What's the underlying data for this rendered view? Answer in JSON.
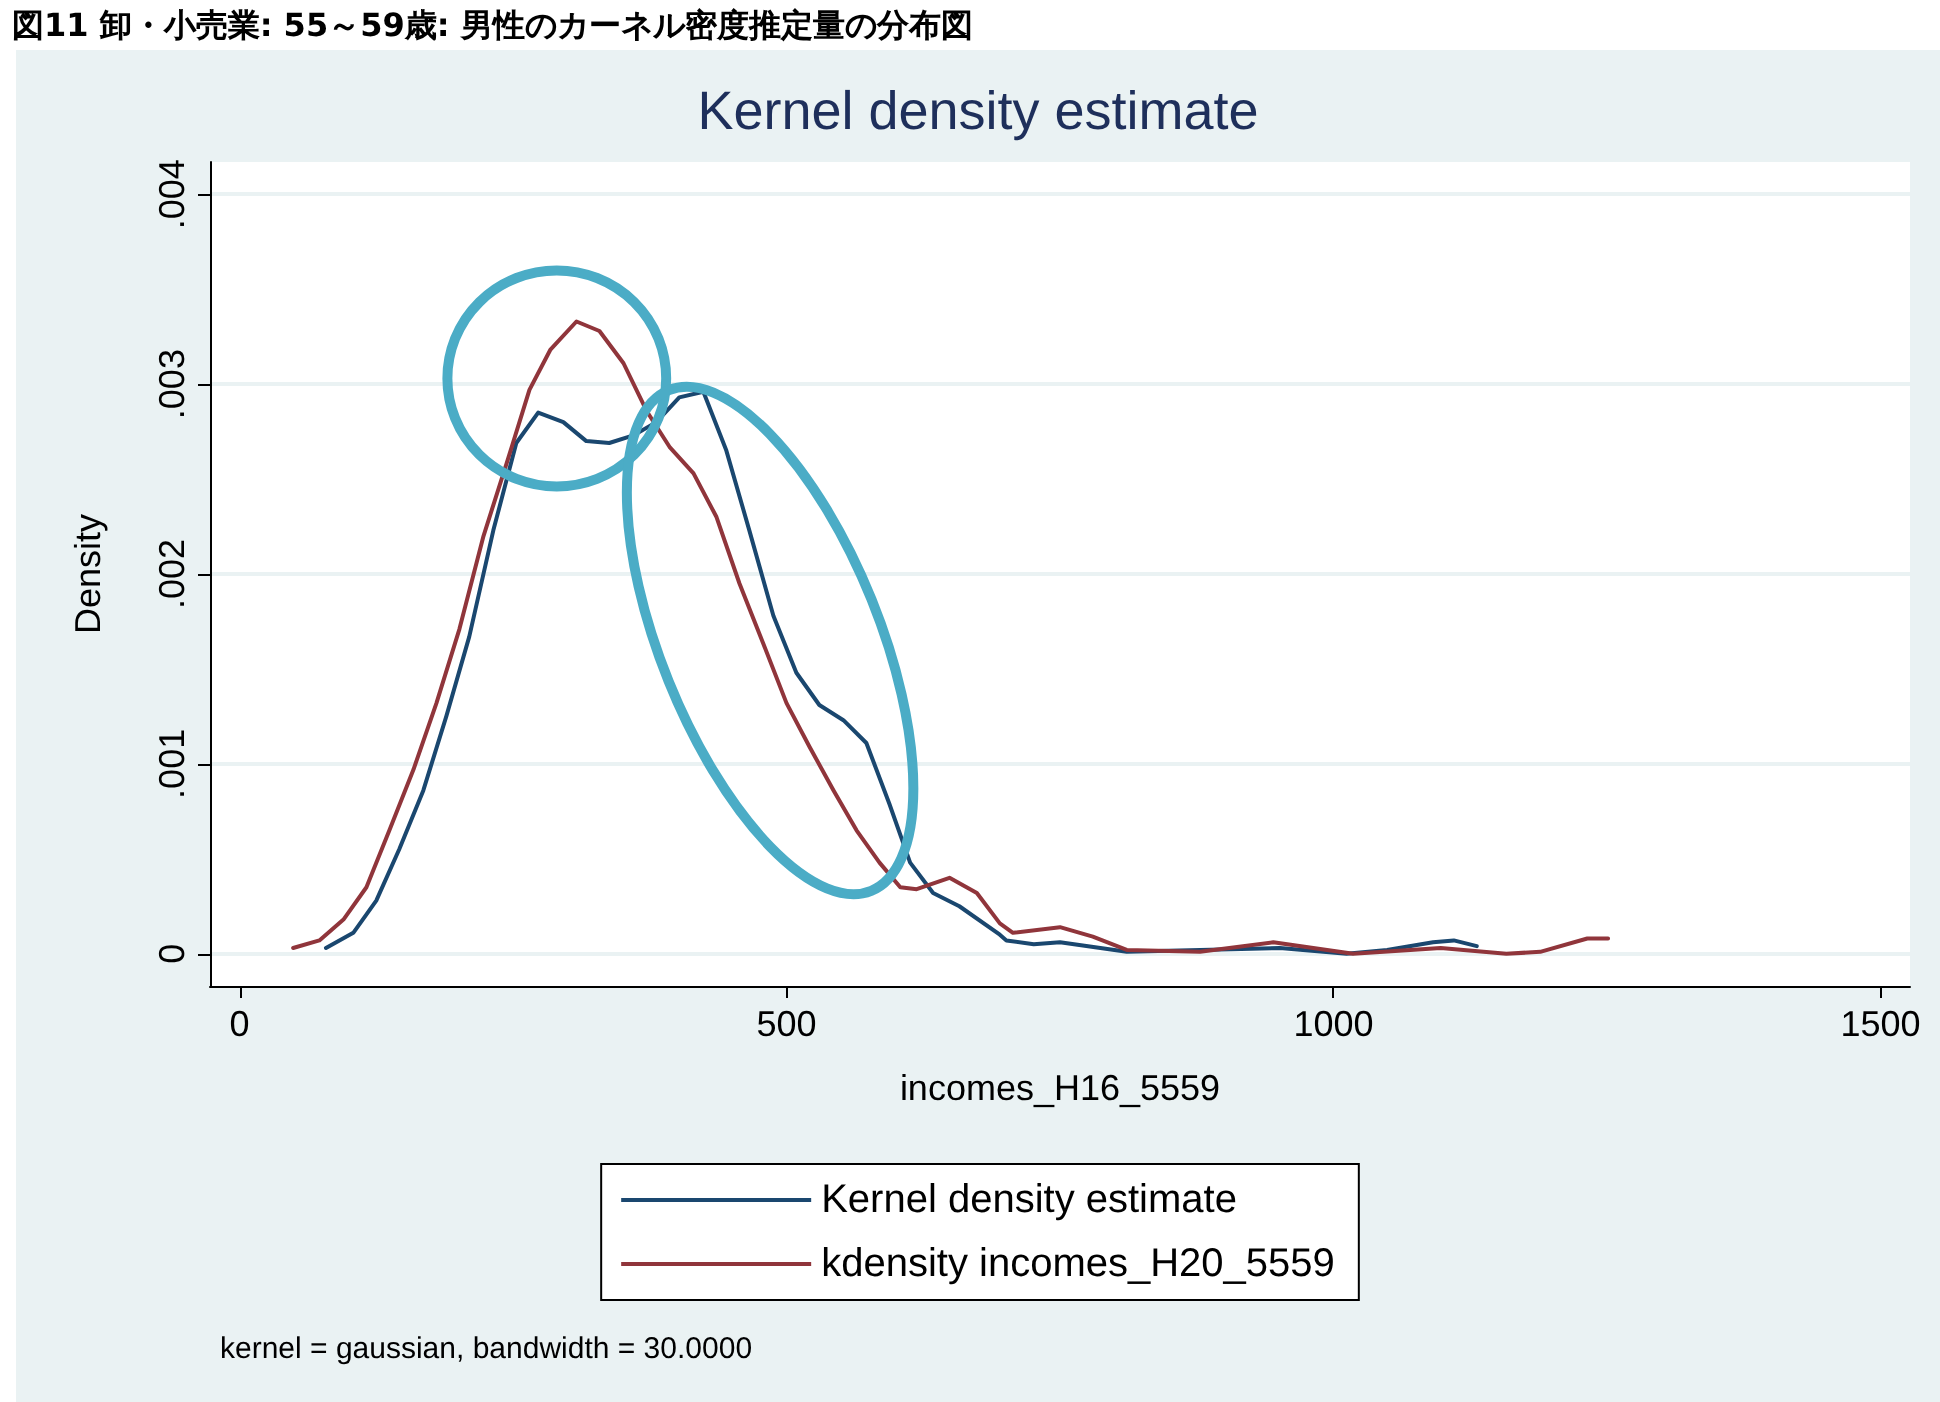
{
  "chart_data": {
    "type": "line",
    "title": "図11 卸・小売業: 55～59歳: 男性のカーネル密度推定量の分布図",
    "subtitle": "Kernel density estimate",
    "xlabel": "incomes_H16_5559",
    "ylabel": "Density",
    "annotations": [
      "kernel = gaussian, bandwidth = 30.0000"
    ],
    "xlim": [
      -27,
      1527
    ],
    "xticks": [
      0,
      500,
      1000,
      1500
    ],
    "ylim": [
      -0.00017,
      0.00417
    ],
    "yticks": [
      {
        "value": 0,
        "label": "0"
      },
      {
        "value": 0.001,
        "label": ".001"
      },
      {
        "value": 0.002,
        "label": ".002"
      },
      {
        "value": 0.003,
        "label": ".003"
      },
      {
        "value": 0.004,
        "label": ".004"
      }
    ],
    "grid": "y",
    "legend": "bottom",
    "marker": "none",
    "line_style": "solid",
    "series": [
      {
        "name": "Kernel density estimate",
        "color": "#1a476f",
        "x": [
          79,
          104,
          125,
          146,
          168,
          189,
          210,
          232,
          253,
          273,
          296,
          317,
          338,
          360,
          381,
          402,
          424,
          445,
          466,
          488,
          509,
          530,
          552,
          573,
          594,
          613,
          634,
          658,
          695,
          701,
          726,
          750,
          811,
          878,
          951,
          1012,
          1049,
          1091,
          1110,
          1131
        ],
        "values": [
          3e-05,
          0.00011,
          0.00028,
          0.00055,
          0.00086,
          0.00125,
          0.00167,
          0.00223,
          0.00269,
          0.00285,
          0.0028,
          0.0027,
          0.00269,
          0.00273,
          0.0028,
          0.00293,
          0.00296,
          0.00265,
          0.00223,
          0.00178,
          0.00148,
          0.00131,
          0.00123,
          0.00111,
          0.00079,
          0.00048,
          0.00032,
          0.00025,
          0.0001,
          7e-05,
          5e-05,
          6e-05,
          1e-05,
          2e-05,
          3e-05,
          0.0,
          2e-05,
          6e-05,
          7e-05,
          4e-05
        ]
      },
      {
        "name": "kdensity incomes_H20_5559",
        "color": "#90353b",
        "x": [
          49,
          73,
          95,
          116,
          137,
          159,
          180,
          201,
          223,
          244,
          265,
          284,
          308,
          329,
          351,
          372,
          393,
          415,
          436,
          457,
          479,
          500,
          521,
          543,
          564,
          585,
          604,
          619,
          649,
          674,
          695,
          707,
          750,
          780,
          811,
          878,
          945,
          1018,
          1098,
          1158,
          1189,
          1232,
          1251
        ],
        "values": [
          3e-05,
          7e-05,
          0.00018,
          0.00035,
          0.00065,
          0.00097,
          0.00132,
          0.00171,
          0.0022,
          0.00258,
          0.00297,
          0.00318,
          0.00333,
          0.00328,
          0.00311,
          0.00286,
          0.00267,
          0.00253,
          0.0023,
          0.00195,
          0.00163,
          0.00132,
          0.00109,
          0.00086,
          0.00065,
          0.00048,
          0.00035,
          0.00034,
          0.0004,
          0.00032,
          0.00016,
          0.00011,
          0.00014,
          9e-05,
          2e-05,
          1e-05,
          6e-05,
          0.0,
          3e-05,
          0.0,
          1e-05,
          8e-05,
          8e-05
        ]
      }
    ]
  }
}
